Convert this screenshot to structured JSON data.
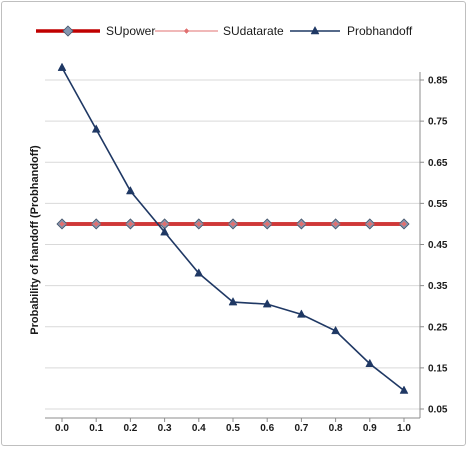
{
  "chart_data": {
    "type": "line",
    "title": "",
    "xlabel": "",
    "ylabel": "Probability of handoff (Probhandoff)",
    "x": [
      0.0,
      0.1,
      0.2,
      0.3,
      0.4,
      0.5,
      0.6,
      0.7,
      0.8,
      0.9,
      1.0
    ],
    "x_tick_labels": [
      "0.0",
      "0.1",
      "0.2",
      "0.3",
      "0.4",
      "0.5",
      "0.6",
      "0.7",
      "0.8",
      "0.9",
      "1.0"
    ],
    "ylim": [
      0.05,
      0.85
    ],
    "y_ticks": [
      0.05,
      0.15,
      0.25,
      0.35,
      0.45,
      0.55,
      0.65,
      0.75,
      0.85
    ],
    "y_tick_labels": [
      "0.05",
      "0.15",
      "0.25",
      "0.35",
      "0.45",
      "0.55",
      "0.65",
      "0.75",
      "0.85"
    ],
    "y_axis_position": "right",
    "grid": "horizontal",
    "legend_position": "top",
    "series": [
      {
        "name": "SUpower",
        "color": "#c00000",
        "marker": "diamond",
        "values": [
          0.5,
          0.5,
          0.5,
          0.5,
          0.5,
          0.5,
          0.5,
          0.5,
          0.5,
          0.5,
          0.5
        ]
      },
      {
        "name": "SUdatarate",
        "color": "#e07070",
        "marker": "small-diamond",
        "values": [
          0.5,
          0.5,
          0.5,
          0.5,
          0.5,
          0.5,
          0.5,
          0.5,
          0.5,
          0.5,
          0.5
        ]
      },
      {
        "name": "Probhandoff",
        "color": "#1f3864",
        "marker": "triangle",
        "values": [
          0.88,
          0.73,
          0.58,
          0.48,
          0.38,
          0.31,
          0.305,
          0.28,
          0.24,
          0.16,
          0.095
        ]
      }
    ]
  }
}
